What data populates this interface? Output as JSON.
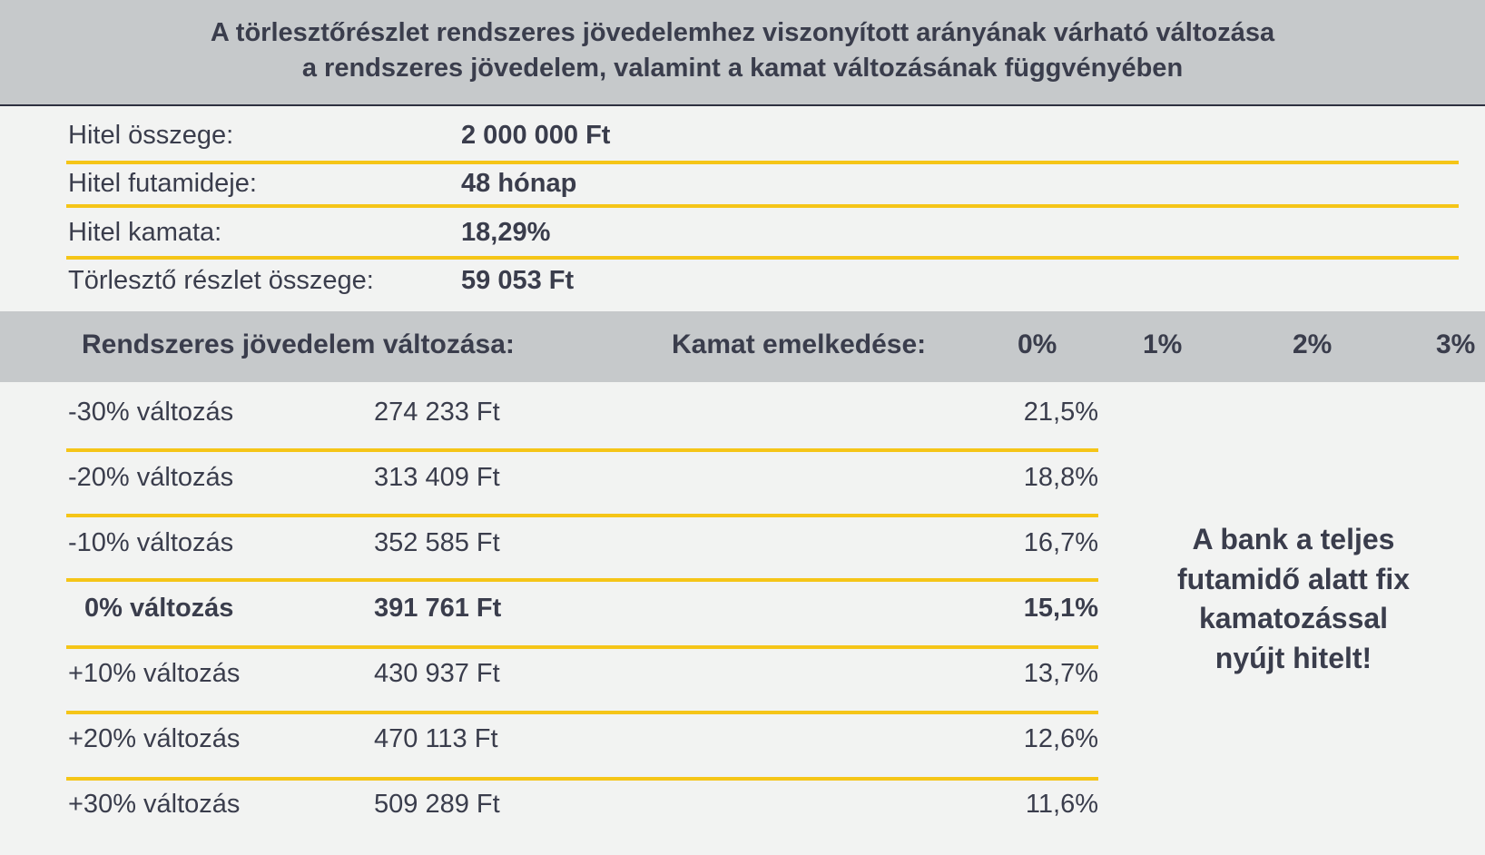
{
  "title": {
    "line1": "A törlesztőrészlet rendszeres jövedelemhez viszonyított arányának várható változása",
    "line2": "a rendszeres jövedelem, valamint a kamat változásának függvényében"
  },
  "loan": [
    {
      "label": "Hitel összege:",
      "value": "2 000 000 Ft"
    },
    {
      "label": "Hitel futamideje:",
      "value": "48 hónap"
    },
    {
      "label": "Hitel kamata:",
      "value": "18,29%"
    },
    {
      "label": "Törlesztő részlet összege:",
      "value": "59 053 Ft"
    }
  ],
  "header": {
    "income_change": "Rendszeres jövedelem változása:",
    "rate_increase": "Kamat emelkedése:",
    "rate_steps": [
      "0%",
      "1%",
      "2%",
      "3%"
    ]
  },
  "rows": [
    {
      "label": "-30% változás",
      "income": "274 233 Ft",
      "pct": "21,5%"
    },
    {
      "label": "-20% változás",
      "income": "313 409 Ft",
      "pct": "18,8%"
    },
    {
      "label": "-10% változás",
      "income": "352 585 Ft",
      "pct": "16,7%"
    },
    {
      "label": "0% változás",
      "income": "391 761 Ft",
      "pct": "15,1%"
    },
    {
      "label": "+10% változás",
      "income": "430 937 Ft",
      "pct": "13,7%"
    },
    {
      "label": "+20% változás",
      "income": "470 113 Ft",
      "pct": "12,6%"
    },
    {
      "label": "+30% változás",
      "income": "509 289 Ft",
      "pct": "11,6%"
    }
  ],
  "note": {
    "lines": [
      "A bank a teljes",
      "futamidő alatt fix",
      "kamatozással",
      "nyújt hitelt!"
    ]
  },
  "colors": {
    "band": "#c6c9cb",
    "background": "#f2f3f2",
    "accent_line": "#f5c518",
    "text": "#3a3d4c"
  }
}
